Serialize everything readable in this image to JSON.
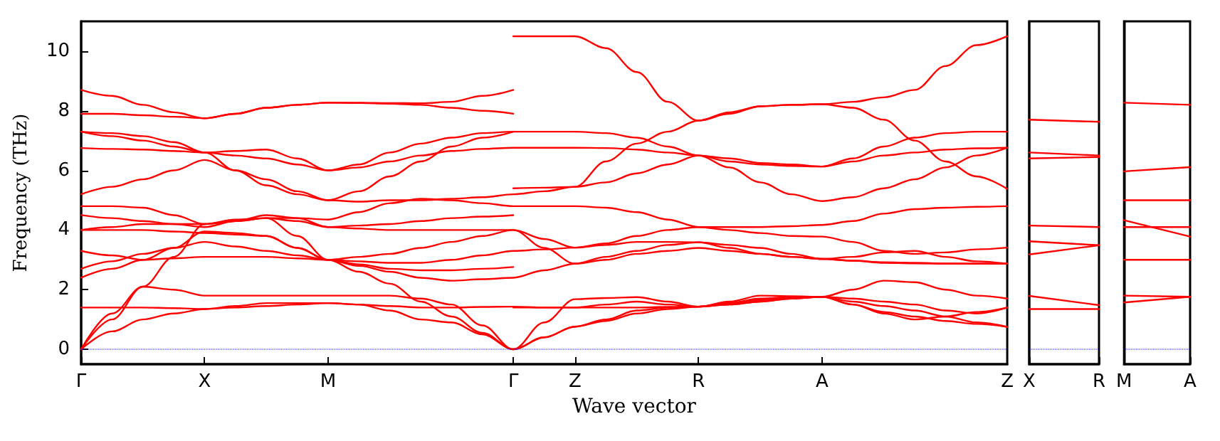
{
  "chart_data": [
    {
      "type": "line",
      "xlabel": "Wave vector",
      "ylabel": "Frequency (THz)",
      "marker": "none",
      "line_style": "solid",
      "categories": [
        "Γ",
        null,
        null,
        null,
        "X",
        null,
        null,
        null,
        "M",
        null,
        null,
        null,
        null,
        null,
        "Γ",
        null,
        "Z",
        null,
        null,
        null,
        "R",
        null,
        null,
        null,
        "A",
        null,
        null,
        null,
        null,
        null,
        "Z"
      ],
      "ylim": [
        -0.5,
        11
      ],
      "yticks": [
        0,
        2,
        4,
        6,
        8,
        10
      ],
      "ref_lines": [
        {
          "axis": "y",
          "value": 0,
          "color": "#0000ff",
          "line_style": "dotted"
        }
      ],
      "series": [
        {
          "color": "#ff0000",
          "values": [
            8.7,
            8.5,
            8.2,
            7.95,
            7.75,
            7.9,
            8.1,
            8.2,
            8.27,
            8.27,
            8.26,
            8.25,
            8.3,
            8.5,
            8.7,
            null,
            null,
            null,
            null,
            null,
            null,
            null,
            null,
            null,
            null,
            null,
            null,
            null,
            null,
            null,
            null
          ]
        },
        {
          "color": "#ff0000",
          "values": [
            7.9,
            7.9,
            7.85,
            7.8,
            7.75,
            7.9,
            8.1,
            8.2,
            8.27,
            8.26,
            8.24,
            8.2,
            8.1,
            8.0,
            7.9,
            null,
            null,
            null,
            null,
            null,
            null,
            null,
            null,
            null,
            null,
            null,
            null,
            null,
            null,
            null,
            null
          ]
        },
        {
          "color": "#ff0000",
          "values": [
            7.3,
            7.25,
            7.15,
            6.95,
            6.6,
            6.65,
            6.7,
            6.4,
            6.0,
            6.2,
            6.6,
            6.9,
            7.1,
            7.25,
            7.3,
            7.3,
            7.3,
            7.25,
            7.1,
            6.8,
            6.5,
            6.3,
            6.2,
            6.15,
            6.13,
            6.4,
            6.8,
            7.1,
            7.25,
            7.3,
            7.3
          ]
        },
        {
          "color": "#ff0000",
          "values": [
            7.3,
            7.15,
            7.0,
            6.8,
            6.6,
            6.0,
            5.5,
            5.2,
            5.0,
            5.3,
            5.8,
            6.3,
            6.8,
            7.1,
            7.3,
            null,
            null,
            null,
            null,
            null,
            null,
            null,
            null,
            null,
            null,
            null,
            null,
            null,
            null,
            null,
            null
          ]
        },
        {
          "color": "#ff0000",
          "values": [
            6.75,
            6.72,
            6.7,
            6.65,
            6.6,
            6.5,
            6.4,
            6.2,
            6.0,
            6.1,
            6.3,
            6.5,
            6.65,
            6.72,
            6.76,
            6.76,
            6.76,
            6.75,
            6.7,
            6.6,
            6.5,
            6.1,
            5.6,
            5.2,
            4.97,
            5.1,
            5.4,
            5.7,
            6.1,
            6.5,
            6.76
          ]
        },
        {
          "color": "#ff0000",
          "values": [
            5.2,
            5.45,
            5.7,
            6.0,
            6.35,
            6.0,
            5.7,
            5.3,
            5.0,
            4.95,
            5.0,
            5.0,
            5.05,
            5.1,
            5.2,
            5.3,
            5.45,
            5.6,
            5.9,
            6.2,
            6.5,
            6.4,
            6.25,
            6.2,
            6.13,
            6.3,
            6.5,
            6.6,
            6.7,
            6.74,
            6.76
          ]
        },
        {
          "color": "#ff0000",
          "values": [
            4.8,
            4.8,
            4.75,
            4.5,
            4.2,
            4.3,
            4.4,
            4.4,
            4.35,
            4.6,
            4.9,
            5.05,
            5.0,
            4.9,
            4.8,
            4.8,
            4.8,
            4.75,
            4.6,
            4.35,
            4.1,
            4.1,
            4.1,
            4.13,
            4.17,
            4.3,
            4.55,
            4.7,
            4.75,
            4.78,
            4.8
          ]
        },
        {
          "color": "#ff0000",
          "values": [
            4.5,
            4.4,
            4.3,
            4.2,
            4.1,
            4.3,
            4.5,
            4.4,
            4.1,
            4.15,
            4.2,
            4.3,
            4.4,
            4.45,
            4.5,
            null,
            null,
            null,
            null,
            null,
            null,
            null,
            null,
            null,
            null,
            null,
            null,
            null,
            null,
            null,
            null
          ]
        },
        {
          "color": "#ff0000",
          "values": [
            4.0,
            4.1,
            4.2,
            4.2,
            4.2,
            4.3,
            4.4,
            4.3,
            4.1,
            4.05,
            4.0,
            4.0,
            4.0,
            4.0,
            4.0,
            3.7,
            3.41,
            3.55,
            3.8,
            4.0,
            4.1,
            4.0,
            3.9,
            3.8,
            3.78,
            3.6,
            3.3,
            3.2,
            3.25,
            3.35,
            3.41
          ]
        },
        {
          "color": "#ff0000",
          "values": [
            4.0,
            4.0,
            4.0,
            3.95,
            3.9,
            3.85,
            3.8,
            3.4,
            3.0,
            3.1,
            3.2,
            3.4,
            3.6,
            3.8,
            4.0,
            3.4,
            2.87,
            3.0,
            3.2,
            3.3,
            3.4,
            3.3,
            3.2,
            3.1,
            3.03,
            2.97,
            2.92,
            2.9,
            2.88,
            2.87,
            2.87
          ]
        },
        {
          "color": "#ff0000",
          "values": [
            3.3,
            3.15,
            3.0,
            3.4,
            3.95,
            3.9,
            3.8,
            3.4,
            3.0,
            2.95,
            2.9,
            2.9,
            3.0,
            3.15,
            3.3,
            3.35,
            3.41,
            3.5,
            3.6,
            3.6,
            3.59,
            3.4,
            3.2,
            3.1,
            3.03,
            3.1,
            3.25,
            3.3,
            3.1,
            2.95,
            2.87
          ]
        },
        {
          "color": "#ff0000",
          "values": [
            2.7,
            2.95,
            3.2,
            3.4,
            3.6,
            3.45,
            3.3,
            3.15,
            3.0,
            2.85,
            2.7,
            2.65,
            2.65,
            2.7,
            2.76,
            null,
            null,
            null,
            null,
            null,
            null,
            null,
            null,
            null,
            null,
            null,
            null,
            null,
            null,
            null,
            null
          ]
        },
        {
          "color": "#ff0000",
          "values": [
            2.4,
            2.7,
            3.0,
            3.05,
            3.1,
            3.1,
            3.1,
            3.05,
            3.0,
            2.8,
            2.6,
            2.4,
            2.3,
            2.35,
            2.4,
            2.65,
            2.87,
            3.1,
            3.3,
            3.5,
            3.59,
            3.5,
            3.4,
            3.2,
            3.03,
            2.97,
            2.9,
            2.88,
            2.87,
            2.87,
            2.87
          ]
        },
        {
          "color": "#ff0000",
          "values": [
            1.4,
            1.4,
            1.4,
            1.38,
            1.35,
            1.4,
            1.45,
            1.5,
            1.55,
            1.5,
            1.45,
            1.4,
            1.4,
            1.42,
            1.43,
            1.4,
            1.4,
            1.4,
            1.4,
            1.42,
            1.43,
            1.5,
            1.6,
            1.7,
            1.76,
            1.6,
            1.45,
            1.3,
            1.1,
            0.9,
            0.75
          ]
        },
        {
          "color": "#ff0000",
          "values": [
            null,
            null,
            null,
            null,
            null,
            null,
            null,
            null,
            null,
            null,
            null,
            null,
            null,
            null,
            1.4,
            1.4,
            1.4,
            1.5,
            1.6,
            1.5,
            1.43,
            1.6,
            1.8,
            1.78,
            1.76,
            1.5,
            1.2,
            1.0,
            1.1,
            1.25,
            1.4
          ]
        },
        {
          "color": "#ff0000",
          "values": [
            0,
            1.2,
            2.1,
            2.0,
            1.8,
            1.8,
            1.8,
            1.8,
            1.8,
            1.8,
            1.8,
            1.7,
            1.5,
            0.8,
            0,
            0.9,
            1.68,
            1.72,
            1.75,
            1.6,
            1.43,
            1.5,
            1.6,
            1.7,
            1.76,
            2.0,
            2.3,
            2.25,
            2.0,
            1.8,
            1.7
          ]
        },
        {
          "color": "#ff0000",
          "values": [
            0,
            0.6,
            1.0,
            1.2,
            1.35,
            1.45,
            1.55,
            1.55,
            1.55,
            1.5,
            1.3,
            1.0,
            0.9,
            0.5,
            0,
            0.4,
            0.76,
            1.0,
            1.3,
            1.4,
            1.43,
            1.55,
            1.65,
            1.72,
            1.76,
            1.5,
            1.25,
            1.1,
            0.95,
            0.85,
            0.75
          ]
        },
        {
          "color": "#ff0000",
          "values": [
            0,
            1.0,
            2.1,
            3.1,
            4.2,
            4.35,
            4.4,
            3.8,
            3.0,
            2.6,
            2.2,
            1.6,
            1.1,
            0.55,
            0,
            0.4,
            0.76,
            0.95,
            1.2,
            1.35,
            1.43,
            1.55,
            1.7,
            1.75,
            1.76,
            1.7,
            1.6,
            1.5,
            1.3,
            1.2,
            1.4
          ]
        },
        {
          "color": "#ff0000",
          "values": [
            null,
            null,
            null,
            null,
            null,
            null,
            null,
            null,
            null,
            null,
            null,
            null,
            null,
            null,
            10.5,
            10.5,
            10.5,
            10.1,
            9.3,
            8.3,
            7.67,
            7.9,
            8.15,
            8.2,
            8.22,
            8.3,
            8.45,
            8.7,
            9.5,
            10.2,
            10.5
          ]
        },
        {
          "color": "#ff0000",
          "values": [
            null,
            null,
            null,
            null,
            null,
            null,
            null,
            null,
            null,
            null,
            null,
            null,
            null,
            null,
            5.4,
            5.42,
            5.45,
            6.3,
            6.9,
            7.3,
            7.67,
            7.95,
            8.15,
            8.2,
            8.22,
            8.1,
            7.7,
            7.0,
            6.3,
            5.8,
            5.38
          ]
        }
      ]
    },
    {
      "type": "line",
      "marker": "none",
      "line_style": "solid",
      "tick_labels": "x",
      "categories": [
        "X",
        "R"
      ],
      "ylim": [
        -0.5,
        11
      ],
      "yticks": [
        0,
        2,
        4,
        6,
        8,
        10
      ],
      "ref_lines": [
        {
          "axis": "y",
          "value": 0,
          "color": "#0000ff",
          "line_style": "dotted"
        }
      ],
      "series": [
        {
          "color": "#ff0000",
          "values": [
            7.7,
            7.63
          ]
        },
        {
          "color": "#ff0000",
          "values": [
            6.6,
            6.5
          ]
        },
        {
          "color": "#ff0000",
          "values": [
            6.4,
            6.45
          ]
        },
        {
          "color": "#ff0000",
          "values": [
            4.15,
            4.1
          ]
        },
        {
          "color": "#ff0000",
          "values": [
            3.62,
            3.49
          ]
        },
        {
          "color": "#ff0000",
          "values": [
            3.18,
            3.49
          ]
        },
        {
          "color": "#ff0000",
          "values": [
            1.79,
            1.48
          ]
        },
        {
          "color": "#ff0000",
          "values": [
            1.35,
            1.35
          ]
        }
      ]
    },
    {
      "type": "line",
      "marker": "none",
      "line_style": "solid",
      "tick_labels": "x",
      "categories": [
        "M",
        "A"
      ],
      "ylim": [
        -0.5,
        11
      ],
      "yticks": [
        0,
        2,
        4,
        6,
        8,
        10
      ],
      "ref_lines": [
        {
          "axis": "y",
          "value": 0,
          "color": "#0000ff",
          "line_style": "dotted"
        }
      ],
      "series": [
        {
          "color": "#ff0000",
          "values": [
            8.27,
            8.2
          ]
        },
        {
          "color": "#ff0000",
          "values": [
            5.97,
            6.11
          ]
        },
        {
          "color": "#ff0000",
          "values": [
            5.0,
            5.0
          ]
        },
        {
          "color": "#ff0000",
          "values": [
            4.33,
            3.78
          ]
        },
        {
          "color": "#ff0000",
          "values": [
            4.1,
            4.1
          ]
        },
        {
          "color": "#ff0000",
          "values": [
            3.0,
            3.0
          ]
        },
        {
          "color": "#ff0000",
          "values": [
            1.8,
            1.76
          ]
        },
        {
          "color": "#ff0000",
          "values": [
            1.57,
            1.76
          ]
        }
      ]
    }
  ]
}
